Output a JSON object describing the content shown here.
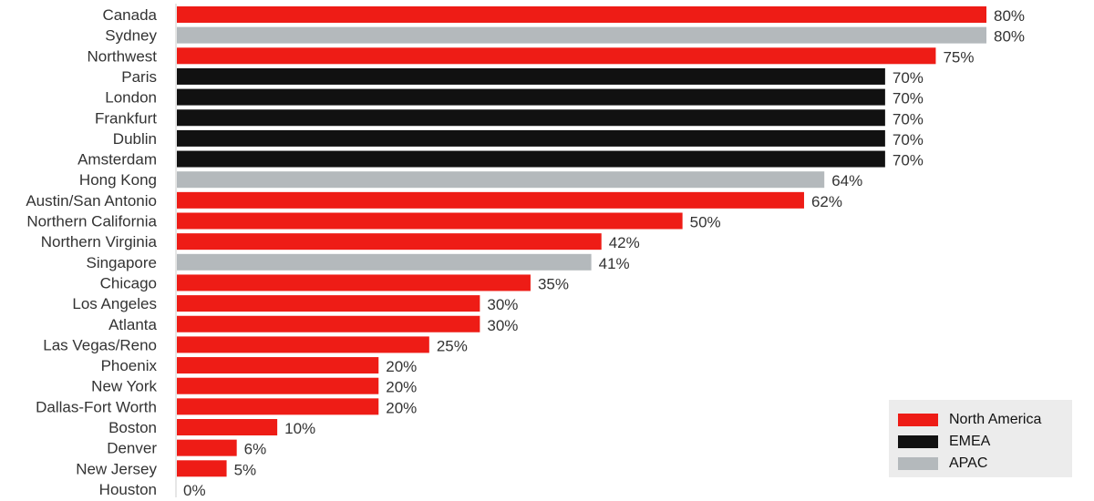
{
  "chart_data": {
    "type": "bar",
    "orientation": "horizontal",
    "categories": [
      "Canada",
      "Sydney",
      "Northwest",
      "Paris",
      "London",
      "Frankfurt",
      "Dublin",
      "Amsterdam",
      "Hong Kong",
      "Austin/San Antonio",
      "Northern California",
      "Northern Virginia",
      "Singapore",
      "Chicago",
      "Los Angeles",
      "Atlanta",
      "Las Vegas/Reno",
      "Phoenix",
      "New York",
      "Dallas-Fort Worth",
      "Boston",
      "Denver",
      "New Jersey",
      "Houston"
    ],
    "values": [
      80,
      80,
      75,
      70,
      70,
      70,
      70,
      70,
      64,
      62,
      50,
      42,
      41,
      35,
      30,
      30,
      25,
      20,
      20,
      20,
      10,
      6,
      5,
      0
    ],
    "value_labels": [
      "80%",
      "80%",
      "75%",
      "70%",
      "70%",
      "70%",
      "70%",
      "70%",
      "64%",
      "62%",
      "50%",
      "42%",
      "41%",
      "35%",
      "30%",
      "30%",
      "25%",
      "20%",
      "20%",
      "20%",
      "10%",
      "6%",
      "5%",
      "0%"
    ],
    "groups": [
      "North America",
      "APAC",
      "North America",
      "EMEA",
      "EMEA",
      "EMEA",
      "EMEA",
      "EMEA",
      "APAC",
      "North America",
      "North America",
      "North America",
      "APAC",
      "North America",
      "North America",
      "North America",
      "North America",
      "North America",
      "North America",
      "North America",
      "North America",
      "North America",
      "North America",
      "North America"
    ],
    "xlim": [
      0,
      80
    ],
    "grid": false,
    "legend_position": "bottom-right",
    "legend": [
      {
        "name": "North America",
        "color": "#ee1c16"
      },
      {
        "name": "EMEA",
        "color": "#111111"
      },
      {
        "name": "APAC",
        "color": "#b4b9bc"
      }
    ]
  }
}
